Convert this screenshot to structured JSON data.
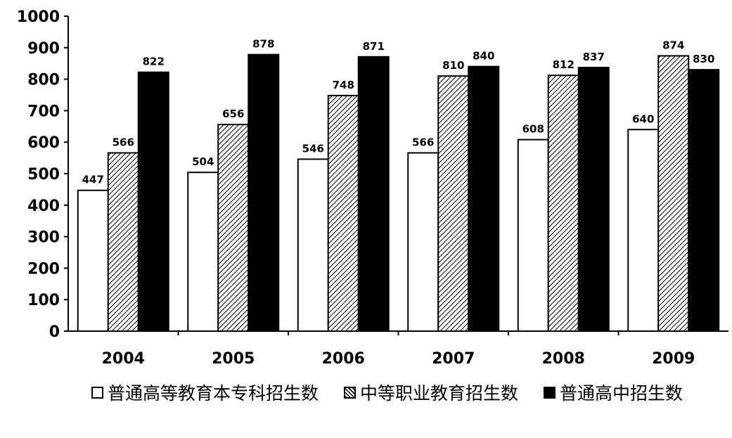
{
  "chart_data": {
    "type": "bar",
    "categories": [
      "2004",
      "2005",
      "2006",
      "2007",
      "2008",
      "2009"
    ],
    "series": [
      {
        "name": "普通高等教育本专科招生数",
        "values": [
          447,
          504,
          546,
          566,
          608,
          640
        ],
        "fill": "white"
      },
      {
        "name": "中等职业教育招生数",
        "values": [
          566,
          656,
          748,
          810,
          812,
          874
        ],
        "fill": "hatched"
      },
      {
        "name": "普通高中招生数",
        "values": [
          822,
          878,
          871,
          840,
          837,
          830
        ],
        "fill": "#000000"
      }
    ],
    "ylim": [
      0,
      1000
    ],
    "yticks": [
      "0",
      "100",
      "200",
      "300",
      "400",
      "500",
      "600",
      "700",
      "800",
      "900",
      "1000"
    ],
    "title": "",
    "xlabel": "",
    "ylabel": "",
    "grid": false,
    "legend_position": "bottom"
  }
}
